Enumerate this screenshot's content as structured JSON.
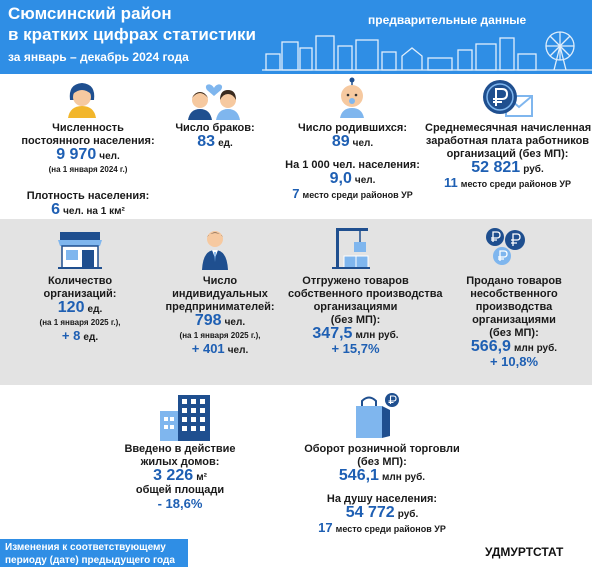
{
  "header": {
    "title_line1": "Сюмсинский район",
    "title_line2": "в кратких цифрах статистики",
    "period": "за январь – декабрь 2024 года",
    "preliminary": "предварительные данные"
  },
  "population": {
    "label_line1": "Численность",
    "label_line2": "постоянного населения:",
    "value": "9 970",
    "unit": "чел.",
    "note": "(на 1 января 2024 г.)",
    "density_label": "Плотность населения:",
    "density_value": "6",
    "density_unit": "чел. на 1 км²"
  },
  "marriages": {
    "label": "Число браков:",
    "value": "83",
    "unit": "ед."
  },
  "births": {
    "label": "Число родившихся:",
    "value": "89",
    "unit": "чел.",
    "per1000_label": "На 1 000 чел. населения:",
    "per1000_value": "9,0",
    "per1000_unit": "чел.",
    "rank": "7",
    "rank_text": "место среди районов УР"
  },
  "salary": {
    "label_line1": "Среднемесячная начисленная",
    "label_line2": "заработная плата работников",
    "label_line3": "организаций (без МП):",
    "value": "52 821",
    "unit": "руб.",
    "rank": "11",
    "rank_text": "место среди районов УР"
  },
  "organizations": {
    "label_line1": "Количество",
    "label_line2": "организаций:",
    "value": "120",
    "unit": "ед.",
    "note": "(на 1 января 2025 г.),",
    "change": "+ 8",
    "change_unit": "ед."
  },
  "entrepreneurs": {
    "label_line1": "Число",
    "label_line2": "индивидуальных",
    "label_line3": "предпринимателей:",
    "value": "798",
    "unit": "чел.",
    "note": "(на 1 января 2025 г.),",
    "change": "+ 401",
    "change_unit": "чел."
  },
  "shipped": {
    "label_line1": "Отгружено товаров",
    "label_line2": "собственного производства",
    "label_line3": "организациями",
    "label_line4": "(без МП):",
    "value": "347,5",
    "unit": "млн руб.",
    "change": "+ 15,7%"
  },
  "sold": {
    "label_line1": "Продано товаров",
    "label_line2": "несобственного",
    "label_line3": "производства",
    "label_line4": "организациями",
    "label_line5": "(без МП):",
    "value": "566,9",
    "unit": "млн руб.",
    "change": "+ 10,8%"
  },
  "housing": {
    "label_line1": "Введено в действие",
    "label_line2": "жилых домов:",
    "value": "3 226",
    "unit": "м²",
    "label_line3": "общей площади",
    "change": "- 18,6%"
  },
  "retail": {
    "label_line1": "Оборот розничной торговли",
    "label_line2": "(без МП):",
    "value": "546,1",
    "unit": "млн руб.",
    "percap_label": "На душу населения:",
    "percap_value": "54 772",
    "percap_unit": "руб.",
    "rank": "17",
    "rank_text": "место среди районов УР"
  },
  "footer": {
    "note_line1": "Изменения к соответствующему",
    "note_line2": "периоду (дате) предыдущего года",
    "brand": "УДМУРТСТАТ"
  },
  "colors": {
    "header_blue": "#2f8ee5",
    "value_blue": "#1e5fb3",
    "band_gray": "#e3e3e3",
    "icon_dark": "#1f4f8f",
    "icon_light": "#7fb6ee"
  }
}
